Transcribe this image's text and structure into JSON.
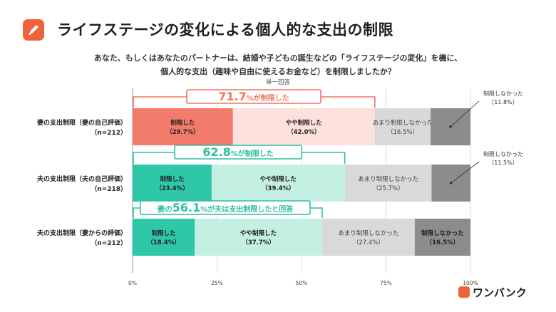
{
  "title": "ライフステージの変化による個人的な支出の制限",
  "question_line1": "あなた、もしくはあなたのパートナーは、結婚や子どもの誕生などの「ライフステージの変化」を機に、",
  "question_line2": "個人的な支出（趣味や自由に使えるお金など）を制限しましたか？",
  "note": "単一回答",
  "brand": "ワンバンク",
  "colors": {
    "accent": "#f0623c",
    "red_dark": "#f27b6c",
    "red_light": "#fce1dc",
    "teal_dark": "#2ec8a8",
    "teal_light": "#c4f0e4",
    "gray_light": "#d9d9d9",
    "gray_dark": "#8c8c8c",
    "box_red": "#f07560",
    "box_teal": "#2ebfa1"
  },
  "chart_data": {
    "type": "bar",
    "orientation": "horizontal",
    "stacked": true,
    "unit": "%",
    "xlim": [
      0,
      100
    ],
    "xticks": [
      "0%",
      "25%",
      "50%",
      "75%",
      "100%"
    ],
    "grid": true,
    "categories": [
      {
        "label1": "妻の支出制限（妻の自己評価）",
        "label2": "（n=212）"
      },
      {
        "label1": "夫の支出制限（夫の自己評価）",
        "label2": "（n=218）"
      },
      {
        "label1": "夫の支出制限（妻からの評価）",
        "label2": "（n=212）"
      }
    ],
    "series": [
      {
        "name": "制限した",
        "values": [
          29.7,
          23.4,
          18.4
        ],
        "labels": [
          "（29.7%）",
          "（23.4%）",
          "（18.4%）"
        ]
      },
      {
        "name": "やや制限した",
        "values": [
          42.0,
          39.4,
          37.7
        ],
        "labels": [
          "（42.0%）",
          "（39.4%）",
          "（37.7%）"
        ]
      },
      {
        "name": "あまり制限しなかった",
        "values": [
          16.5,
          25.7,
          27.4
        ],
        "labels": [
          "（16.5%）",
          "（25.7%）",
          "（27.4%）"
        ]
      },
      {
        "name": "制限しなかった",
        "values": [
          11.8,
          11.5,
          16.5
        ],
        "labels": [
          "（11.8%）",
          "（11.5%）",
          "（16.5%）"
        ]
      }
    ],
    "annotations": [
      {
        "bar": 0,
        "prefix": "",
        "value": "71.7",
        "suffix": "%が制限した",
        "sum_of": 2,
        "theme": "red"
      },
      {
        "bar": 1,
        "prefix": "",
        "value": "62.8",
        "suffix": "%が制限した",
        "sum_of": 2,
        "theme": "teal"
      },
      {
        "bar": 2,
        "prefix": "妻の",
        "value": "56.1",
        "suffix": "%が夫は支出制限したと回答",
        "sum_of": 2,
        "theme": "teal"
      }
    ]
  }
}
